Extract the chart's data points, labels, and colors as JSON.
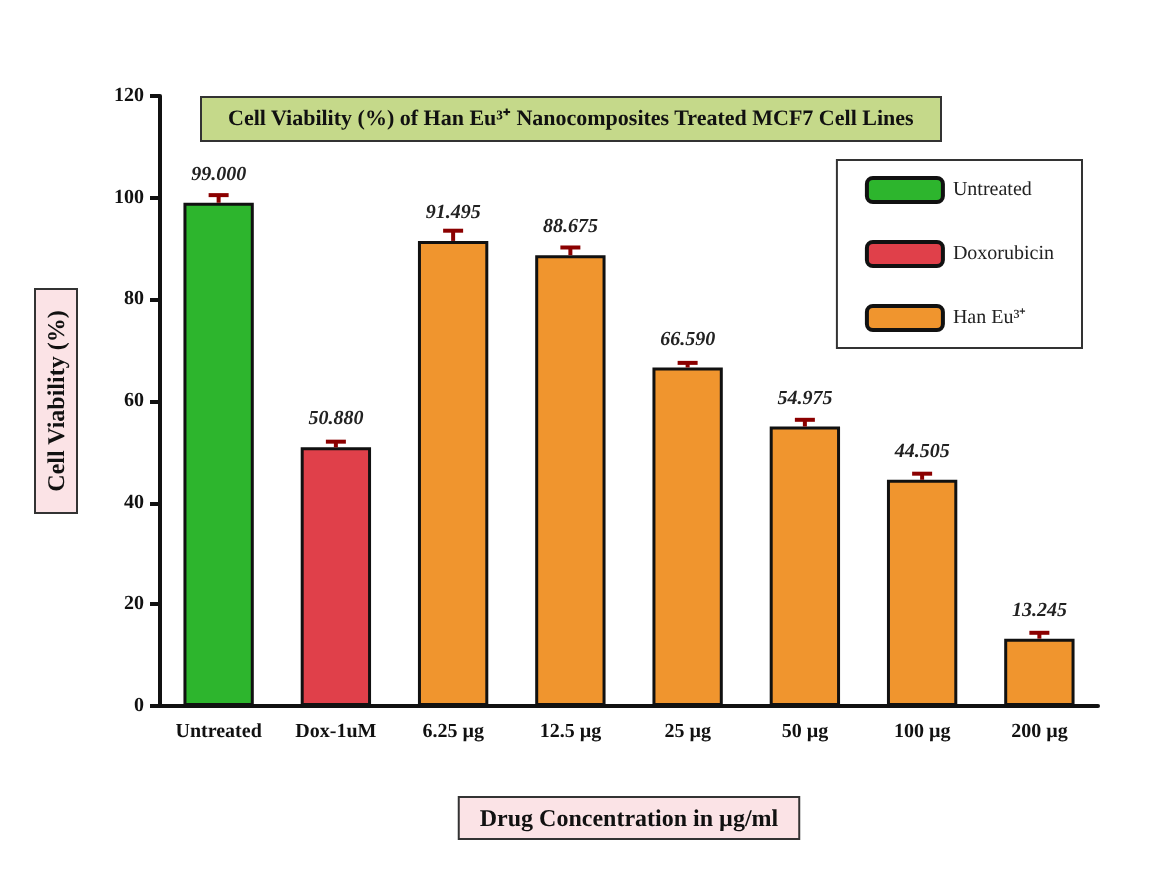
{
  "chart_data": {
    "type": "bar",
    "title": "Cell Viability (%) of Han Eu³⁺ Nanocomposites Treated MCF7 Cell Lines",
    "xlabel": "Drug Concentration in µg/ml",
    "ylabel": "Cell Viability (%)",
    "categories": [
      "Untreated",
      "Dox-1uM",
      "6.25 µg",
      "12.5 µg",
      "25 µg",
      "50 µg",
      "100 µg",
      "200 µg"
    ],
    "stacked": true,
    "series": [
      {
        "name": "Untreated",
        "color": "#2db52d",
        "values": [
          99.0,
          null,
          null,
          null,
          null,
          null,
          null,
          null
        ],
        "errors": [
          [
            99.0,
            100.5
          ],
          null,
          null,
          null,
          null,
          null,
          null,
          null
        ],
        "value_labels": [
          "99.000",
          null,
          null,
          null,
          null,
          null,
          null,
          null
        ]
      },
      {
        "name": "Doxorubicin",
        "color": "#e0404a",
        "values": [
          null,
          50.88,
          null,
          null,
          null,
          null,
          null,
          null
        ],
        "errors": [
          null,
          [
            50.88,
            52.0
          ],
          null,
          null,
          null,
          null,
          null,
          null
        ],
        "value_labels": [
          null,
          "50.880",
          null,
          null,
          null,
          null,
          null,
          null
        ]
      },
      {
        "name": "Han Eu³⁺",
        "color": "#f0952e",
        "values": [
          null,
          null,
          91.495,
          88.675,
          66.59,
          54.975,
          44.505,
          13.245
        ],
        "errors": [
          null,
          null,
          [
            91.495,
            93.5
          ],
          [
            88.675,
            90.2
          ],
          [
            66.59,
            67.5
          ],
          [
            54.975,
            56.3
          ],
          [
            44.505,
            45.7
          ],
          [
            13.245,
            14.4
          ]
        ],
        "value_labels": [
          null,
          null,
          "91.495",
          "88.675",
          "66.590",
          "54.975",
          "44.505",
          "13.245"
        ]
      }
    ],
    "ylim": [
      0,
      120
    ],
    "yticks": [
      0,
      20,
      40,
      60,
      80,
      100,
      120
    ],
    "legend": "top right",
    "grid": false
  }
}
